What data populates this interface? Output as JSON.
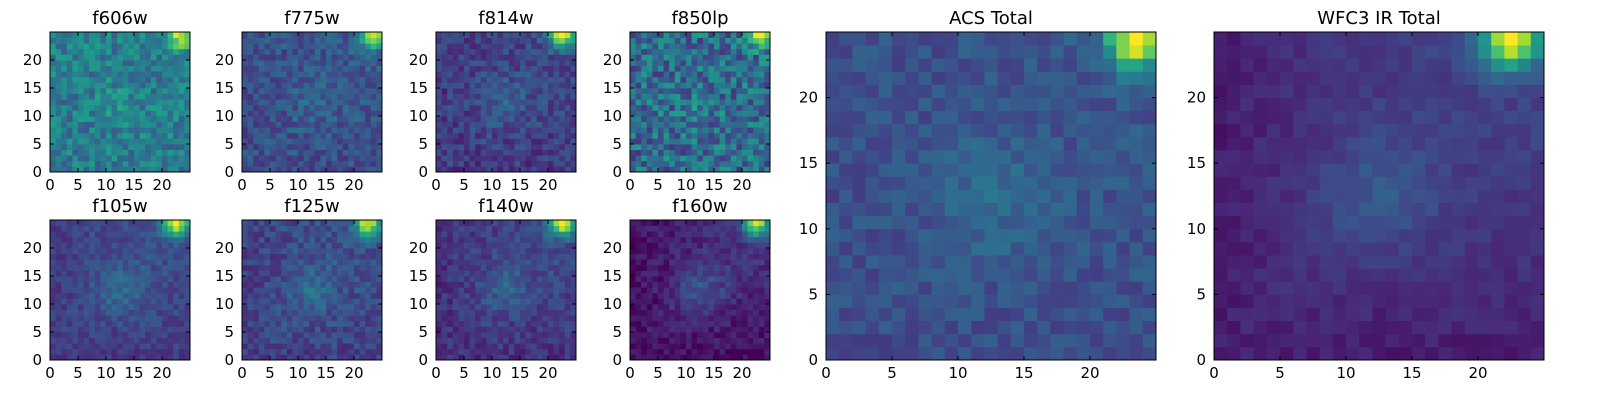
{
  "figure": {
    "background": "#ffffff"
  },
  "colormap": [
    "#440154",
    "#482878",
    "#3e4a89",
    "#31688e",
    "#26828e",
    "#1f9e89",
    "#35b779",
    "#6ece58",
    "#b5de2b",
    "#fde725"
  ],
  "chart_data": [
    {
      "type": "heatmap",
      "title": "f606w",
      "xlim": [
        0,
        25
      ],
      "ylim": [
        0,
        25
      ],
      "xticks": [
        "0",
        "5",
        "10",
        "15",
        "20"
      ],
      "yticks": [
        "0",
        "5",
        "10",
        "15",
        "20"
      ],
      "grid_size": 25,
      "peak": [
        23,
        24
      ],
      "background_level": 0.42,
      "center_bump": 0.06,
      "peak_amplitude": 0.55,
      "noise": 0.14,
      "cold_edge": 0.0,
      "seed": 11
    },
    {
      "type": "heatmap",
      "title": "f775w",
      "xlim": [
        0,
        25
      ],
      "ylim": [
        0,
        25
      ],
      "xticks": [
        "0",
        "5",
        "10",
        "15",
        "20"
      ],
      "yticks": [
        "0",
        "5",
        "10",
        "15",
        "20"
      ],
      "grid_size": 25,
      "peak": [
        23,
        24
      ],
      "background_level": 0.28,
      "center_bump": 0.06,
      "peak_amplitude": 0.7,
      "noise": 0.1,
      "cold_edge": 0.05,
      "seed": 23
    },
    {
      "type": "heatmap",
      "title": "f814w",
      "xlim": [
        0,
        25
      ],
      "ylim": [
        0,
        25
      ],
      "xticks": [
        "0",
        "5",
        "10",
        "15",
        "20"
      ],
      "yticks": [
        "0",
        "5",
        "10",
        "15",
        "20"
      ],
      "grid_size": 25,
      "peak": [
        22,
        24
      ],
      "background_level": 0.22,
      "center_bump": 0.1,
      "peak_amplitude": 0.75,
      "noise": 0.1,
      "cold_edge": 0.05,
      "seed": 37
    },
    {
      "type": "heatmap",
      "title": "f850lp",
      "xlim": [
        0,
        25
      ],
      "ylim": [
        0,
        25
      ],
      "xticks": [
        "0",
        "5",
        "10",
        "15",
        "20"
      ],
      "yticks": [
        "0",
        "5",
        "10",
        "15",
        "20"
      ],
      "grid_size": 25,
      "peak": [
        23,
        24
      ],
      "background_level": 0.35,
      "center_bump": 0.05,
      "peak_amplitude": 0.6,
      "noise": 0.2,
      "cold_edge": 0.0,
      "seed": 41
    },
    {
      "type": "heatmap",
      "title": "f105w",
      "xlim": [
        0,
        25
      ],
      "ylim": [
        0,
        25
      ],
      "xticks": [
        "0",
        "5",
        "10",
        "15",
        "20"
      ],
      "yticks": [
        "0",
        "5",
        "10",
        "15",
        "20"
      ],
      "grid_size": 25,
      "peak": [
        22,
        24
      ],
      "background_level": 0.25,
      "center_bump": 0.12,
      "peak_amplitude": 0.75,
      "noise": 0.07,
      "cold_edge": 0.08,
      "seed": 53
    },
    {
      "type": "heatmap",
      "title": "f125w",
      "xlim": [
        0,
        25
      ],
      "ylim": [
        0,
        25
      ],
      "xticks": [
        "0",
        "5",
        "10",
        "15",
        "20"
      ],
      "yticks": [
        "0",
        "5",
        "10",
        "15",
        "20"
      ],
      "grid_size": 25,
      "peak": [
        22,
        24
      ],
      "background_level": 0.25,
      "center_bump": 0.12,
      "peak_amplitude": 0.7,
      "noise": 0.09,
      "cold_edge": 0.06,
      "seed": 67
    },
    {
      "type": "heatmap",
      "title": "f140w",
      "xlim": [
        0,
        25
      ],
      "ylim": [
        0,
        25
      ],
      "xticks": [
        "0",
        "5",
        "10",
        "15",
        "20"
      ],
      "yticks": [
        "0",
        "5",
        "10",
        "15",
        "20"
      ],
      "grid_size": 25,
      "peak": [
        22,
        24
      ],
      "background_level": 0.22,
      "center_bump": 0.12,
      "peak_amplitude": 0.75,
      "noise": 0.08,
      "cold_edge": 0.08,
      "seed": 79
    },
    {
      "type": "heatmap",
      "title": "f160w",
      "xlim": [
        0,
        25
      ],
      "ylim": [
        0,
        25
      ],
      "xticks": [
        "0",
        "5",
        "10",
        "15",
        "20"
      ],
      "yticks": [
        "0",
        "5",
        "10",
        "15",
        "20"
      ],
      "grid_size": 25,
      "peak": [
        22,
        24
      ],
      "background_level": 0.15,
      "center_bump": 0.15,
      "peak_amplitude": 0.8,
      "noise": 0.07,
      "cold_edge": 0.12,
      "seed": 83
    },
    {
      "type": "heatmap",
      "title": "ACS Total",
      "xlim": [
        0,
        25
      ],
      "ylim": [
        0,
        25
      ],
      "xticks": [
        "0",
        "5",
        "10",
        "15",
        "20"
      ],
      "yticks": [
        "0",
        "5",
        "10",
        "15",
        "20"
      ],
      "grid_size": 25,
      "peak": [
        23,
        24
      ],
      "background_level": 0.26,
      "center_bump": 0.1,
      "peak_amplitude": 0.74,
      "noise": 0.07,
      "cold_edge": 0.02,
      "seed": 97
    },
    {
      "type": "heatmap",
      "title": "WFC3 IR Total",
      "xlim": [
        0,
        25
      ],
      "ylim": [
        0,
        25
      ],
      "xticks": [
        "0",
        "5",
        "10",
        "15",
        "20"
      ],
      "yticks": [
        "0",
        "5",
        "10",
        "15",
        "20"
      ],
      "grid_size": 25,
      "peak": [
        22,
        24
      ],
      "background_level": 0.2,
      "center_bump": 0.12,
      "peak_amplitude": 0.8,
      "noise": 0.04,
      "cold_edge": 0.12,
      "seed": 101
    }
  ]
}
